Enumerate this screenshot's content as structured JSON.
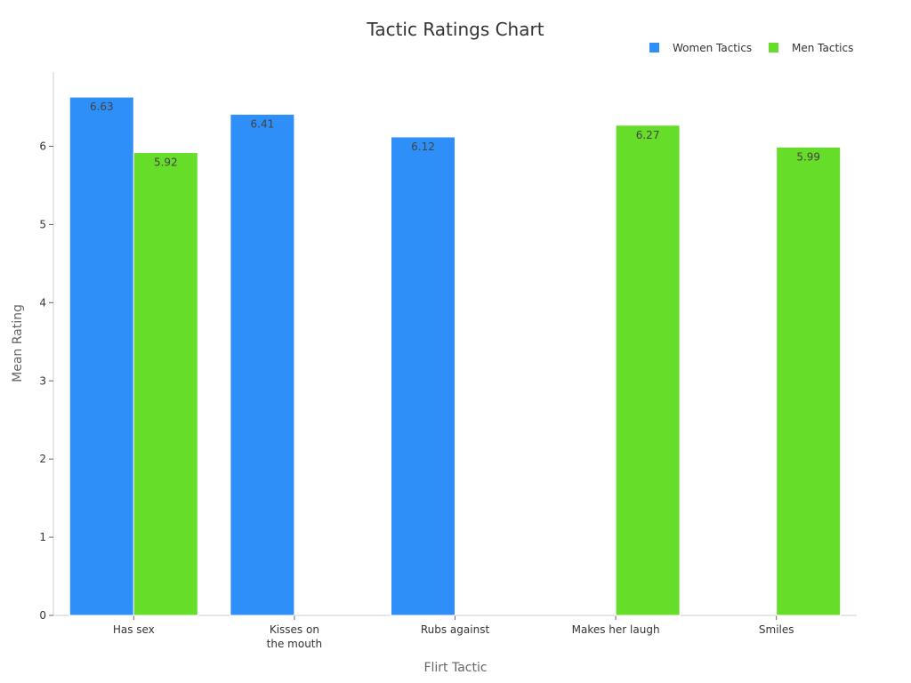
{
  "chart_data": {
    "type": "bar",
    "title": "Tactic Ratings Chart",
    "xlabel": "Flirt Tactic",
    "ylabel": "Mean Rating",
    "categories": [
      [
        "Has sex"
      ],
      [
        "Kisses on",
        "the mouth"
      ],
      [
        "Rubs against"
      ],
      [
        "Makes her laugh"
      ],
      [
        "Smiles"
      ]
    ],
    "series": [
      {
        "name": "Women Tactics",
        "color": "#2d8ff7",
        "values": [
          6.63,
          6.41,
          6.12,
          null,
          null
        ]
      },
      {
        "name": "Men Tactics",
        "color": "#66dd28",
        "values": [
          5.92,
          null,
          null,
          6.27,
          5.99
        ]
      }
    ],
    "data_labels": [
      [
        "6.63",
        "6.41",
        "6.12",
        null,
        null
      ],
      [
        "5.92",
        null,
        null,
        "6.27",
        "5.99"
      ]
    ],
    "ylim": [
      0,
      6.95
    ],
    "yticks": [
      0,
      1,
      2,
      3,
      4,
      5,
      6
    ],
    "grid": false,
    "legend_position": "top-right"
  }
}
